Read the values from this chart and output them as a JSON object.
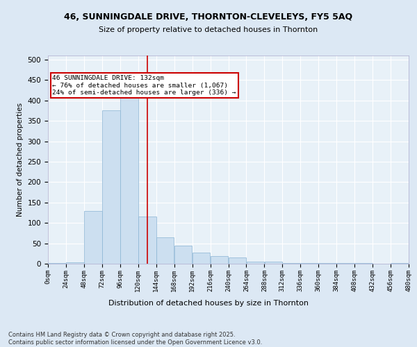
{
  "title1": "46, SUNNINGDALE DRIVE, THORNTON-CLEVELEYS, FY5 5AQ",
  "title2": "Size of property relative to detached houses in Thornton",
  "xlabel": "Distribution of detached houses by size in Thornton",
  "ylabel": "Number of detached properties",
  "bar_color": "#ccdff0",
  "bar_edge_color": "#8ab4d4",
  "bin_edges": [
    0,
    24,
    48,
    72,
    96,
    120,
    144,
    168,
    192,
    216,
    240,
    264,
    288,
    312,
    336,
    360,
    384,
    408,
    432,
    456,
    480
  ],
  "bar_heights": [
    2,
    4,
    130,
    375,
    425,
    115,
    65,
    45,
    28,
    18,
    15,
    5,
    5,
    1,
    1,
    1,
    1,
    1,
    0,
    2
  ],
  "property_size": 132,
  "vline_color": "#cc0000",
  "annotation_text": "46 SUNNINGDALE DRIVE: 132sqm\n← 76% of detached houses are smaller (1,067)\n24% of semi-detached houses are larger (336) →",
  "annotation_box_color": "#ffffff",
  "annotation_box_edge_color": "#cc0000",
  "footnote": "Contains HM Land Registry data © Crown copyright and database right 2025.\nContains public sector information licensed under the Open Government Licence v3.0.",
  "bg_color": "#dce8f4",
  "plot_bg_color": "#e8f1f8",
  "grid_color": "#ffffff",
  "ylim": [
    0,
    510
  ],
  "yticks": [
    0,
    50,
    100,
    150,
    200,
    250,
    300,
    350,
    400,
    450,
    500
  ],
  "tick_labels": [
    "0sqm",
    "24sqm",
    "48sqm",
    "72sqm",
    "96sqm",
    "120sqm",
    "144sqm",
    "168sqm",
    "192sqm",
    "216sqm",
    "240sqm",
    "264sqm",
    "288sqm",
    "312sqm",
    "336sqm",
    "360sqm",
    "384sqm",
    "408sqm",
    "432sqm",
    "456sqm",
    "480sqm"
  ]
}
